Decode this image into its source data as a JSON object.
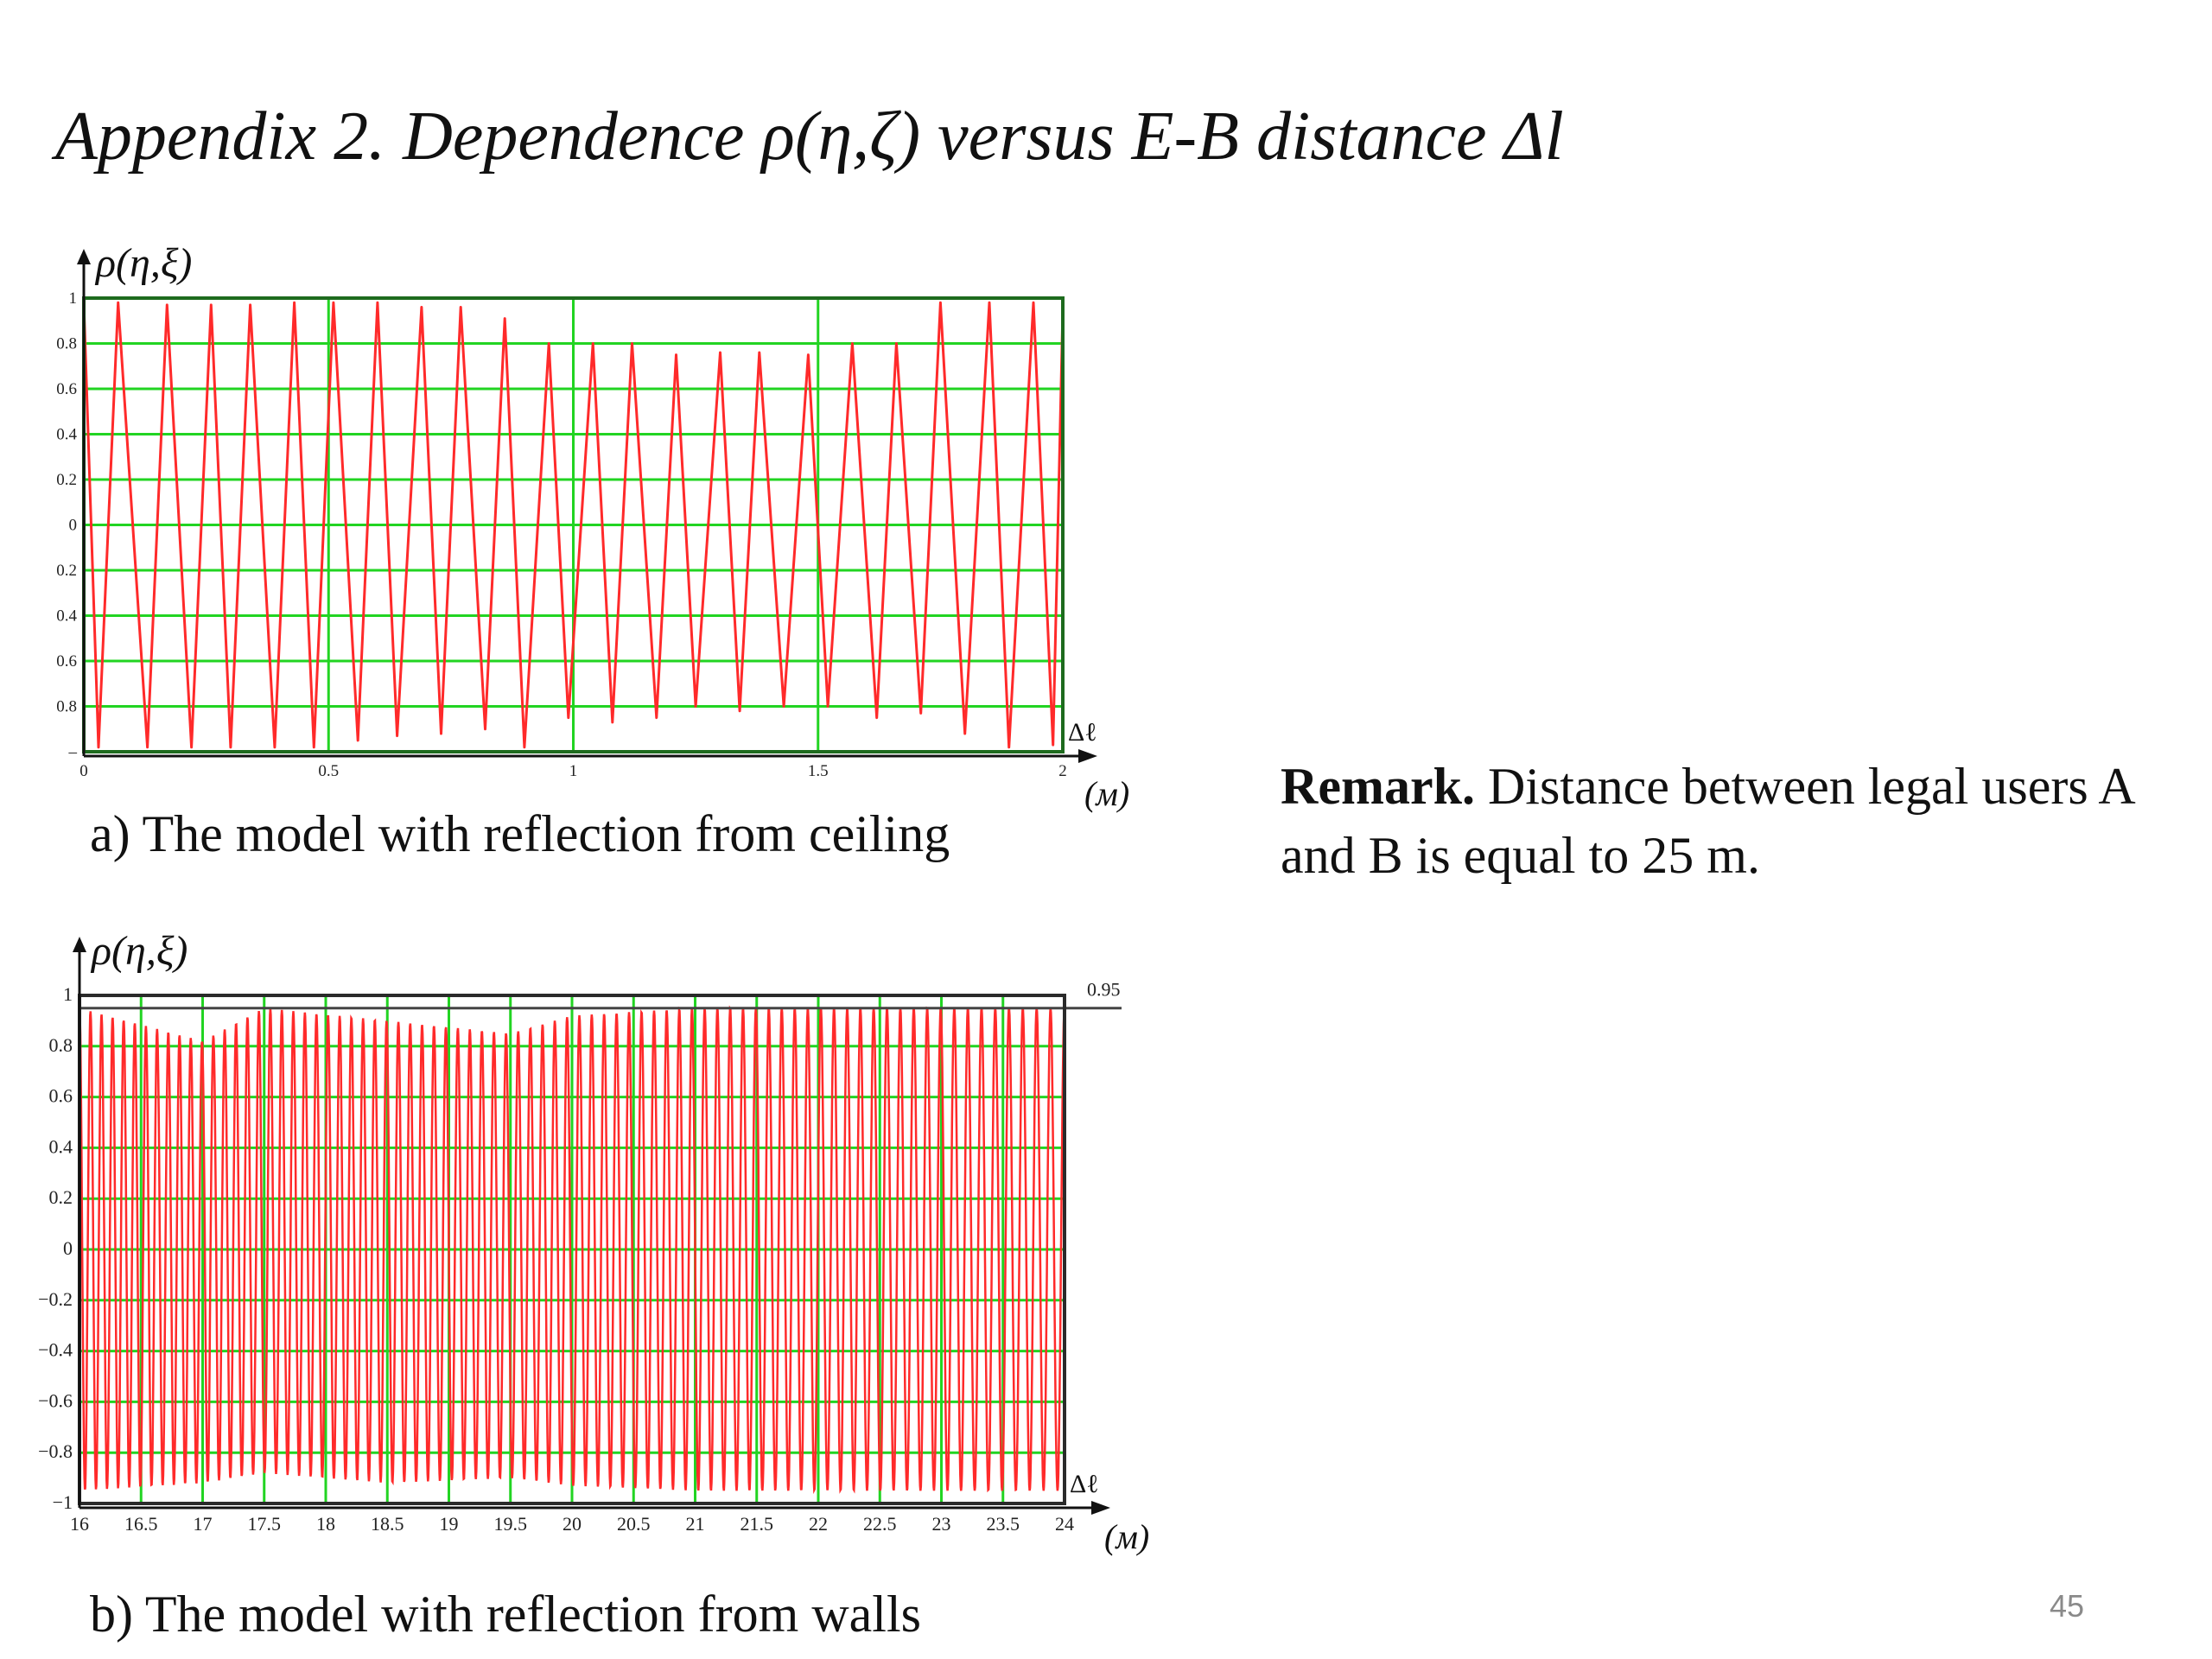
{
  "slide": {
    "title": "Appendix 2. Dependence ρ(η,ζ) versus E-B distance Δl",
    "remark_bold": "Remark.",
    "remark_text": " Distance between legal users A and B is equal to 25 m.",
    "page_number": "45"
  },
  "colors": {
    "grid": "#22d422",
    "curve": "#ff2a2a",
    "frame_a": "#1e6b1e",
    "frame_b": "#2a2a2a"
  },
  "chart_data": [
    {
      "type": "line",
      "caption": "a) The model with reflection from ceiling",
      "ylabel": "ρ(η,ξ)",
      "xlabel": "Δℓ",
      "unit": "(м)",
      "xlim": [
        0,
        2
      ],
      "ylim": [
        -1,
        1
      ],
      "x_ticks": [
        "0",
        "0.5",
        "1",
        "1.5",
        "2"
      ],
      "y_ticks": [
        "1",
        "0.8",
        "0.6",
        "0.4",
        "0.2",
        "0",
        "0.2",
        "0.4",
        "0.6",
        "0.8",
        "–"
      ],
      "grid": true,
      "series": [
        {
          "x": [
            0.0,
            0.03,
            0.07,
            0.13,
            0.17,
            0.22,
            0.26,
            0.3,
            0.34,
            0.39,
            0.43,
            0.47,
            0.51,
            0.56,
            0.6,
            0.64,
            0.69,
            0.73,
            0.77,
            0.82,
            0.86,
            0.9,
            0.95,
            0.99,
            1.04,
            1.08,
            1.12,
            1.17,
            1.21,
            1.25,
            1.3,
            1.34,
            1.38,
            1.43,
            1.48,
            1.52,
            1.57,
            1.62,
            1.66,
            1.71,
            1.75,
            1.8,
            1.85,
            1.89,
            1.94,
            1.98,
            2.0
          ],
          "y": [
            0.98,
            -0.98,
            0.98,
            -0.98,
            0.97,
            -0.98,
            0.97,
            -0.98,
            0.97,
            -0.98,
            0.98,
            -0.98,
            0.98,
            -0.95,
            0.98,
            -0.93,
            0.96,
            -0.92,
            0.96,
            -0.9,
            0.91,
            -0.98,
            0.8,
            -0.85,
            0.8,
            -0.87,
            0.8,
            -0.85,
            0.75,
            -0.8,
            0.76,
            -0.82,
            0.76,
            -0.8,
            0.75,
            -0.8,
            0.8,
            -0.85,
            0.8,
            -0.83,
            0.98,
            -0.92,
            0.98,
            -0.98,
            0.98,
            -0.97,
            0.95
          ]
        }
      ]
    },
    {
      "type": "line",
      "caption": "b) The model with reflection from walls",
      "ylabel": "ρ(η,ξ)",
      "xlabel": "Δℓ",
      "unit": "(м)",
      "xlim": [
        16,
        24
      ],
      "ylim": [
        -1,
        1
      ],
      "x_ticks": [
        "16",
        "16.5",
        "17",
        "17.5",
        "18",
        "18.5",
        "19",
        "19.5",
        "20",
        "20.5",
        "21",
        "21.5",
        "22",
        "22.5",
        "23",
        "23.5",
        "24"
      ],
      "y_ticks": [
        "1",
        "0.8",
        "0.6",
        "0.4",
        "0.2",
        "0",
        "−0.2",
        "−0.4",
        "−0.6",
        "−0.8",
        "−1"
      ],
      "grid": true,
      "reference_line": {
        "value": 0.95,
        "label": "0.95"
      },
      "series": [
        {
          "oscillation_cycles": 80,
          "amplitude_breakpoints": [
            {
              "x": 16,
              "max": 0.95,
              "min": -0.95
            },
            {
              "x": 17,
              "max": 0.82,
              "min": -0.92
            },
            {
              "x": 17.5,
              "max": 0.95,
              "min": -0.88
            },
            {
              "x": 18.5,
              "max": 0.9,
              "min": -0.92
            },
            {
              "x": 19.5,
              "max": 0.85,
              "min": -0.9
            },
            {
              "x": 20,
              "max": 0.92,
              "min": -0.93
            },
            {
              "x": 21,
              "max": 0.95,
              "min": -0.95
            },
            {
              "x": 24,
              "max": 0.95,
              "min": -0.95
            }
          ]
        }
      ]
    }
  ]
}
